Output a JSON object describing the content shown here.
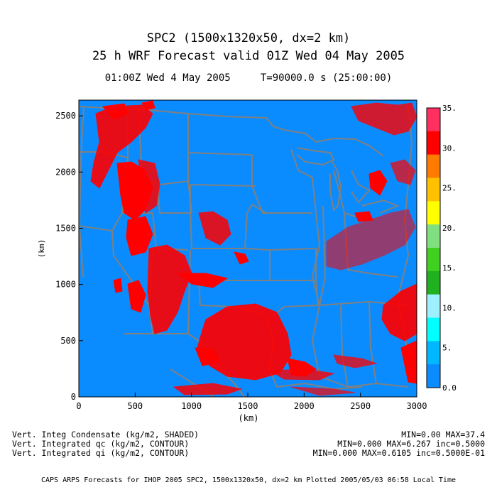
{
  "header": {
    "title_line1": "SPC2 (1500x1320x50, dx=2 km)",
    "title_line2": "25 h WRF Forecast valid 01Z Wed 04 May 2005",
    "valid_time": "01:00Z Wed  4 May 2005",
    "model_time": "T=90000.0 s (25:00:00)"
  },
  "map": {
    "x_label": "(km)",
    "y_label": "(km)",
    "x_ticks": [
      "0",
      "500",
      "1000",
      "1500",
      "2000",
      "2500",
      "3000"
    ],
    "y_ticks": [
      "0",
      "500",
      "1000",
      "1500",
      "2000",
      "2500"
    ],
    "x_range": [
      0,
      3000
    ],
    "y_range": [
      0,
      2640
    ],
    "background_color": "#0a8cff",
    "boundary_color": "#808080",
    "contour_color": "#ff0000"
  },
  "colorbar": {
    "labels": [
      "35.",
      "30.",
      "25.",
      "20.",
      "15.",
      "10.",
      "5.",
      "0.0"
    ],
    "colors": [
      "#ff3060",
      "#ff0000",
      "#ff7a00",
      "#ffc000",
      "#ffff00",
      "#80e080",
      "#40d020",
      "#20b020",
      "#9ff0ff",
      "#00ffff",
      "#00b8ff",
      "#0a8cff"
    ]
  },
  "legend": {
    "line1_left": "Vert. Integ Condensate (kg/m2, SHADED)",
    "line1_right": "MIN=0.00 MAX=37.4",
    "line2_left": "Vert. Integrated qc (kg/m2, CONTOUR)",
    "line2_right": "MIN=0.000 MAX=6.267 inc=0.5000",
    "line3_left": "Vert. Integrated qi (kg/m2, CONTOUR)",
    "line3_right": "MIN=0.000 MAX=0.6105 inc=0.5000E-01"
  },
  "footer": {
    "credit": "CAPS ARPS Forecasts for IHOP 2005  SPC2, 1500x1320x50, dx=2 km  Plotted 2005/05/03 06:58 Local Time"
  }
}
